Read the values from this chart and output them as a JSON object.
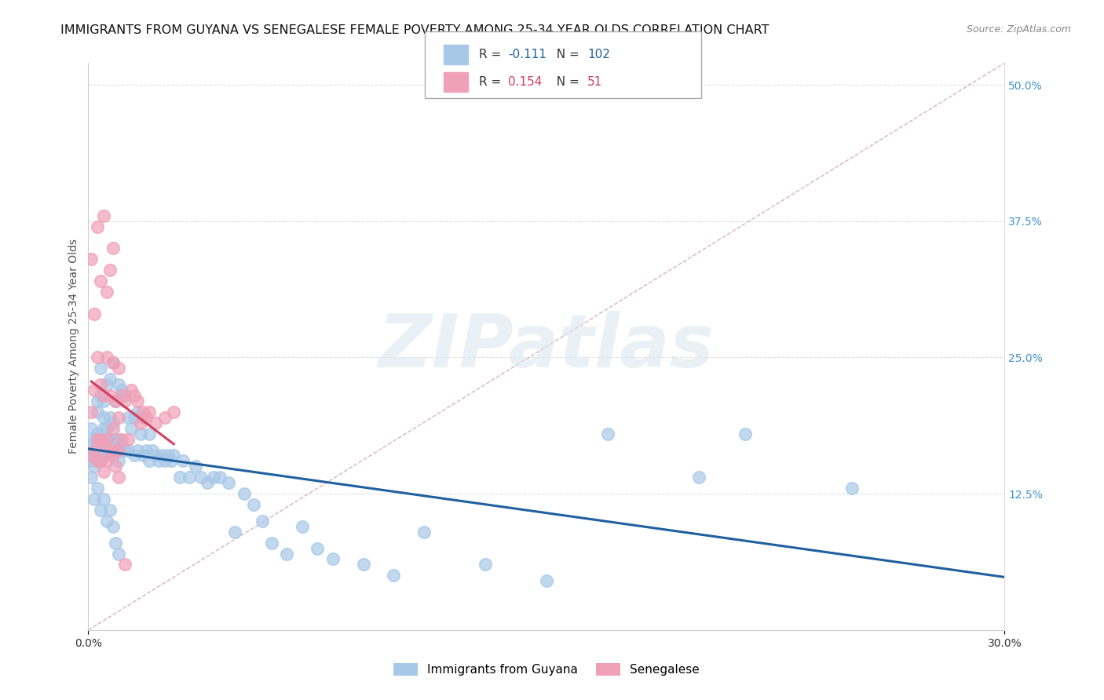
{
  "title": "IMMIGRANTS FROM GUYANA VS SENEGALESE FEMALE POVERTY AMONG 25-34 YEAR OLDS CORRELATION CHART",
  "source": "Source: ZipAtlas.com",
  "ylabel": "Female Poverty Among 25-34 Year Olds",
  "xlim": [
    0.0,
    0.3
  ],
  "ylim": [
    0.0,
    0.52
  ],
  "R_guyana": -0.111,
  "N_guyana": 102,
  "R_senegalese": 0.154,
  "N_senegalese": 51,
  "watermark_text": "ZIPatlas",
  "background_color": "#ffffff",
  "guyana_color": "#a8c8e8",
  "senegalese_color": "#f0a0b8",
  "guyana_line_color": "#2060a0",
  "senegalese_line_color": "#d04060",
  "diagonal_color": "#d0a0a8",
  "grid_color": "#d8d8d8",
  "title_fontsize": 11.5,
  "tick_fontsize": 10,
  "right_tick_color": "#4090d0",
  "guyana_x": [
    0.001,
    0.001,
    0.001,
    0.002,
    0.002,
    0.002,
    0.002,
    0.003,
    0.003,
    0.003,
    0.003,
    0.003,
    0.004,
    0.004,
    0.004,
    0.004,
    0.004,
    0.005,
    0.005,
    0.005,
    0.005,
    0.005,
    0.006,
    0.006,
    0.006,
    0.006,
    0.007,
    0.007,
    0.007,
    0.007,
    0.008,
    0.008,
    0.008,
    0.008,
    0.009,
    0.009,
    0.009,
    0.01,
    0.01,
    0.01,
    0.011,
    0.011,
    0.012,
    0.012,
    0.013,
    0.013,
    0.014,
    0.015,
    0.015,
    0.016,
    0.016,
    0.017,
    0.018,
    0.018,
    0.019,
    0.02,
    0.02,
    0.021,
    0.022,
    0.023,
    0.024,
    0.025,
    0.026,
    0.027,
    0.028,
    0.03,
    0.031,
    0.033,
    0.035,
    0.037,
    0.039,
    0.041,
    0.043,
    0.046,
    0.048,
    0.051,
    0.054,
    0.057,
    0.06,
    0.065,
    0.07,
    0.075,
    0.08,
    0.09,
    0.1,
    0.11,
    0.13,
    0.15,
    0.17,
    0.2,
    0.215,
    0.25,
    0.001,
    0.002,
    0.003,
    0.004,
    0.005,
    0.006,
    0.007,
    0.008,
    0.009,
    0.01
  ],
  "guyana_y": [
    0.155,
    0.17,
    0.185,
    0.15,
    0.165,
    0.175,
    0.16,
    0.155,
    0.165,
    0.18,
    0.2,
    0.21,
    0.155,
    0.165,
    0.175,
    0.215,
    0.24,
    0.16,
    0.17,
    0.185,
    0.195,
    0.21,
    0.16,
    0.175,
    0.185,
    0.225,
    0.165,
    0.175,
    0.195,
    0.23,
    0.16,
    0.17,
    0.19,
    0.245,
    0.165,
    0.175,
    0.21,
    0.155,
    0.175,
    0.225,
    0.17,
    0.22,
    0.165,
    0.215,
    0.165,
    0.195,
    0.185,
    0.16,
    0.195,
    0.165,
    0.2,
    0.18,
    0.16,
    0.195,
    0.165,
    0.155,
    0.18,
    0.165,
    0.16,
    0.155,
    0.16,
    0.155,
    0.16,
    0.155,
    0.16,
    0.14,
    0.155,
    0.14,
    0.15,
    0.14,
    0.135,
    0.14,
    0.14,
    0.135,
    0.09,
    0.125,
    0.115,
    0.1,
    0.08,
    0.07,
    0.095,
    0.075,
    0.065,
    0.06,
    0.05,
    0.09,
    0.06,
    0.045,
    0.18,
    0.14,
    0.18,
    0.13,
    0.14,
    0.12,
    0.13,
    0.11,
    0.12,
    0.1,
    0.11,
    0.095,
    0.08,
    0.07
  ],
  "senegalese_x": [
    0.001,
    0.001,
    0.002,
    0.002,
    0.003,
    0.003,
    0.003,
    0.004,
    0.004,
    0.004,
    0.005,
    0.005,
    0.005,
    0.006,
    0.006,
    0.006,
    0.007,
    0.007,
    0.008,
    0.008,
    0.008,
    0.009,
    0.009,
    0.01,
    0.01,
    0.01,
    0.011,
    0.011,
    0.012,
    0.013,
    0.014,
    0.015,
    0.016,
    0.017,
    0.018,
    0.019,
    0.02,
    0.022,
    0.025,
    0.028,
    0.001,
    0.002,
    0.003,
    0.004,
    0.005,
    0.006,
    0.007,
    0.008,
    0.009,
    0.01,
    0.012
  ],
  "senegalese_y": [
    0.16,
    0.2,
    0.165,
    0.22,
    0.155,
    0.175,
    0.25,
    0.155,
    0.175,
    0.225,
    0.145,
    0.17,
    0.215,
    0.155,
    0.175,
    0.25,
    0.165,
    0.215,
    0.16,
    0.185,
    0.245,
    0.165,
    0.21,
    0.165,
    0.195,
    0.24,
    0.175,
    0.215,
    0.21,
    0.175,
    0.22,
    0.215,
    0.21,
    0.19,
    0.2,
    0.195,
    0.2,
    0.19,
    0.195,
    0.2,
    0.34,
    0.29,
    0.37,
    0.32,
    0.38,
    0.31,
    0.33,
    0.35,
    0.15,
    0.14,
    0.06
  ]
}
